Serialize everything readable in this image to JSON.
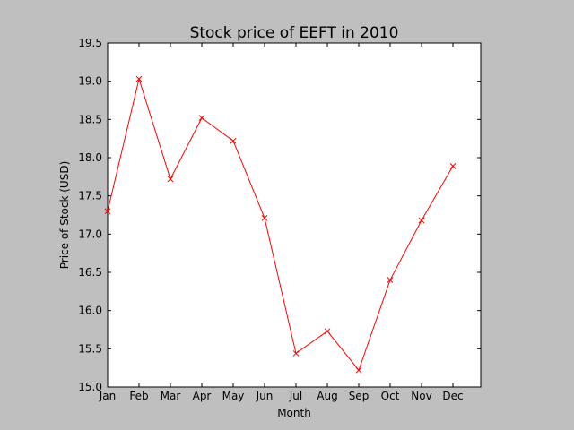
{
  "chart_data": {
    "type": "line",
    "title": "Stock price of EEFT in 2010",
    "xlabel": "Month",
    "ylabel": "Price of Stock (USD)",
    "categories": [
      "Jan",
      "Feb",
      "Mar",
      "Apr",
      "May",
      "Jun",
      "Jul",
      "Aug",
      "Sep",
      "Oct",
      "Nov",
      "Dec"
    ],
    "series": [
      {
        "values": [
          17.3,
          19.03,
          17.72,
          18.52,
          18.22,
          17.21,
          15.44,
          15.73,
          15.22,
          16.4,
          17.18,
          17.89
        ]
      }
    ],
    "ylim": [
      15.0,
      19.5
    ],
    "yticks": [
      "15.0",
      "15.5",
      "16.0",
      "16.5",
      "17.0",
      "17.5",
      "18.0",
      "18.5",
      "19.0",
      "19.5"
    ],
    "grid": false,
    "line_color": "#ff0000",
    "marker": "x"
  }
}
